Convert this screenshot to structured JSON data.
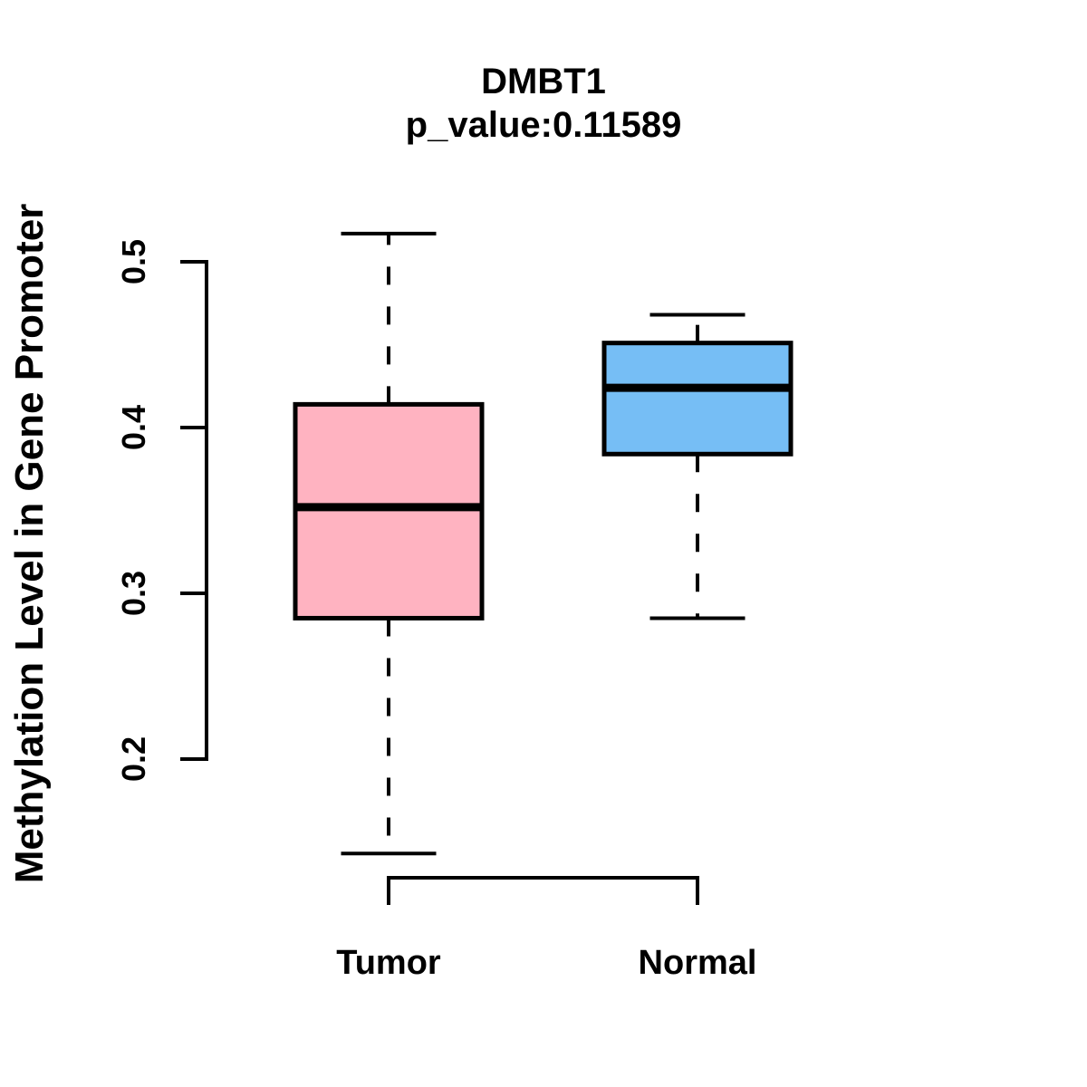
{
  "header": {
    "title": "DMBT1",
    "subtitle": "p_value:0.11589"
  },
  "axes": {
    "ylabel": "Methylation Level in Gene Promoter",
    "xlabel": ""
  },
  "colors": {
    "background": "#FFFFFF",
    "line": "#000000",
    "tumor_fill": "#FFB3C1",
    "normal_fill": "#76BEF5"
  },
  "chart_data": {
    "type": "boxplot",
    "title": "DMBT1",
    "subtitle": "p_value:0.11589",
    "ylabel": "Methylation Level in Gene Promoter",
    "xlabel": "",
    "categories": [
      "Tumor",
      "Normal"
    ],
    "yticks": [
      0.2,
      0.3,
      0.4,
      0.5
    ],
    "ytick_labels": [
      "0.2",
      "0.3",
      "0.4",
      "0.5"
    ],
    "ylim": [
      0.2,
      0.5
    ],
    "grid": false,
    "legend": "none",
    "series": [
      {
        "name": "Tumor",
        "color": "#FFB3C1",
        "stats": {
          "whisker_low": 0.143,
          "q1": 0.285,
          "median": 0.352,
          "q3": 0.414,
          "whisker_high": 0.517
        },
        "outliers": []
      },
      {
        "name": "Normal",
        "color": "#76BEF5",
        "stats": {
          "whisker_low": 0.285,
          "q1": 0.384,
          "median": 0.424,
          "q3": 0.451,
          "whisker_high": 0.468
        },
        "outliers": []
      }
    ]
  }
}
